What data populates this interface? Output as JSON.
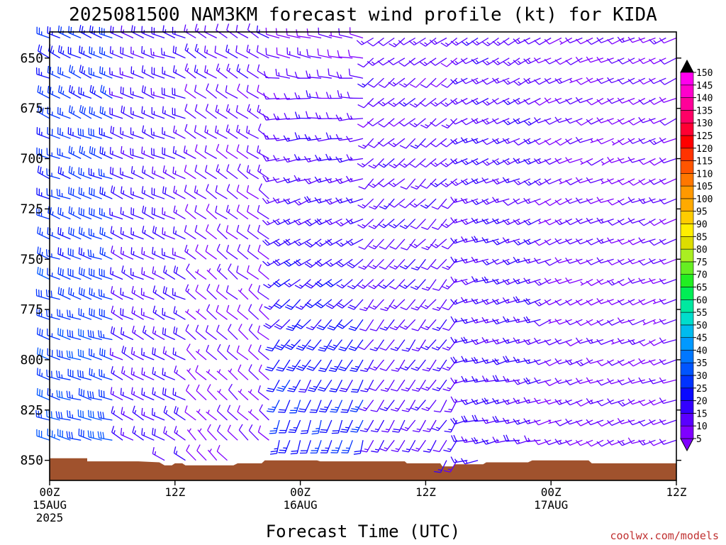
{
  "title": "2025081500 NAM3KM forecast wind profile (kt) for KIDA",
  "xlabel": "Forecast Time (UTC)",
  "credit": "coolwx.com/models",
  "chart_data": {
    "type": "wind-barb",
    "title": "2025081500 NAM3KM forecast wind profile (kt) for KIDA",
    "xlabel": "Forecast Time (UTC)",
    "ylabel": "",
    "y_axis": {
      "ticks": [
        650,
        675,
        700,
        725,
        750,
        775,
        800,
        825,
        850
      ],
      "range": [
        860,
        637
      ]
    },
    "x_axis": {
      "range_hours": [
        0,
        60
      ],
      "ticks": [
        {
          "hour": 0,
          "lines": [
            "00Z",
            "15AUG",
            "2025"
          ]
        },
        {
          "hour": 12,
          "lines": [
            "12Z"
          ]
        },
        {
          "hour": 24,
          "lines": [
            "00Z",
            "16AUG"
          ]
        },
        {
          "hour": 36,
          "lines": [
            "12Z"
          ]
        },
        {
          "hour": 48,
          "lines": [
            "00Z",
            "17AUG"
          ]
        },
        {
          "hour": 60,
          "lines": [
            "12Z"
          ]
        }
      ]
    },
    "barb_levels": [
      640,
      650,
      660,
      670,
      680,
      690,
      700,
      710,
      720,
      730,
      740,
      750,
      760,
      770,
      780,
      790,
      800,
      810,
      820,
      830,
      840,
      850
    ],
    "segments": [
      {
        "t0": 0,
        "t1": 7,
        "dir_top": 295,
        "dir_bot": 285,
        "spd_top": 25,
        "spd_bot": 30
      },
      {
        "t0": 7,
        "t1": 14,
        "dir_top": 290,
        "dir_bot": 300,
        "spd_top": 17,
        "spd_bot": 15
      },
      {
        "t0": 14,
        "t1": 22,
        "dir_top": 300,
        "dir_bot": 315,
        "spd_top": 13,
        "spd_bot": 8
      },
      {
        "t0": 22,
        "t1": 31,
        "dir_top": 285,
        "dir_bot": 190,
        "spd_top": 10,
        "spd_bot": 25
      },
      {
        "t0": 31,
        "t1": 40,
        "dir_top": 235,
        "dir_bot": 210,
        "spd_top": 12,
        "spd_bot": 15
      },
      {
        "t0": 40,
        "t1": 48,
        "dir_top": 240,
        "dir_bot": 260,
        "spd_top": 13,
        "spd_bot": 17
      },
      {
        "t0": 48,
        "t1": 61,
        "dir_top": 245,
        "dir_bot": 250,
        "spd_top": 10,
        "spd_bot": 10
      }
    ],
    "terrain_color": "#a0522d",
    "terrain": [
      [
        0,
        849
      ],
      [
        3.6,
        849
      ],
      [
        3.6,
        850.5
      ],
      [
        8.5,
        850.5
      ],
      [
        10.5,
        851
      ],
      [
        11,
        852.5
      ],
      [
        11.7,
        852.5
      ],
      [
        12,
        851.5
      ],
      [
        12.7,
        851.5
      ],
      [
        13,
        852.5
      ],
      [
        17.6,
        852.5
      ],
      [
        18,
        851.5
      ],
      [
        20.3,
        851.5
      ],
      [
        20.6,
        850
      ],
      [
        25.6,
        850
      ],
      [
        25.9,
        850.5
      ],
      [
        34,
        850.5
      ],
      [
        34.2,
        851.5
      ],
      [
        37.4,
        851.5
      ],
      [
        37.6,
        853
      ],
      [
        38.6,
        853
      ],
      [
        38.8,
        852
      ],
      [
        41.5,
        852
      ],
      [
        41.8,
        851
      ],
      [
        45.8,
        851
      ],
      [
        46.2,
        850
      ],
      [
        51.6,
        850
      ],
      [
        51.9,
        851.5
      ],
      [
        60,
        851.5
      ]
    ],
    "colorbar": {
      "labels": [
        5,
        10,
        15,
        20,
        25,
        30,
        35,
        40,
        45,
        50,
        55,
        60,
        65,
        70,
        75,
        80,
        85,
        90,
        95,
        100,
        105,
        110,
        115,
        120,
        125,
        130,
        135,
        140,
        145,
        150
      ],
      "colors": [
        "#7f00ff",
        "#5a00ff",
        "#3300ff",
        "#0a0aff",
        "#0033ff",
        "#0055ff",
        "#0077ff",
        "#0099ff",
        "#00bbee",
        "#00ddcc",
        "#00e8a0",
        "#00ee55",
        "#22ee22",
        "#66ee22",
        "#aaee22",
        "#dddd00",
        "#ffee00",
        "#ffcc00",
        "#ffaa00",
        "#ff9900",
        "#ff7700",
        "#ff5500",
        "#ff3300",
        "#ff0000",
        "#ff0033",
        "#ff0066",
        "#ff0099",
        "#ff00cc",
        "#ff00ee"
      ],
      "min_arrow_color": "#7f00ff",
      "max_arrow_color": "#000000"
    }
  }
}
